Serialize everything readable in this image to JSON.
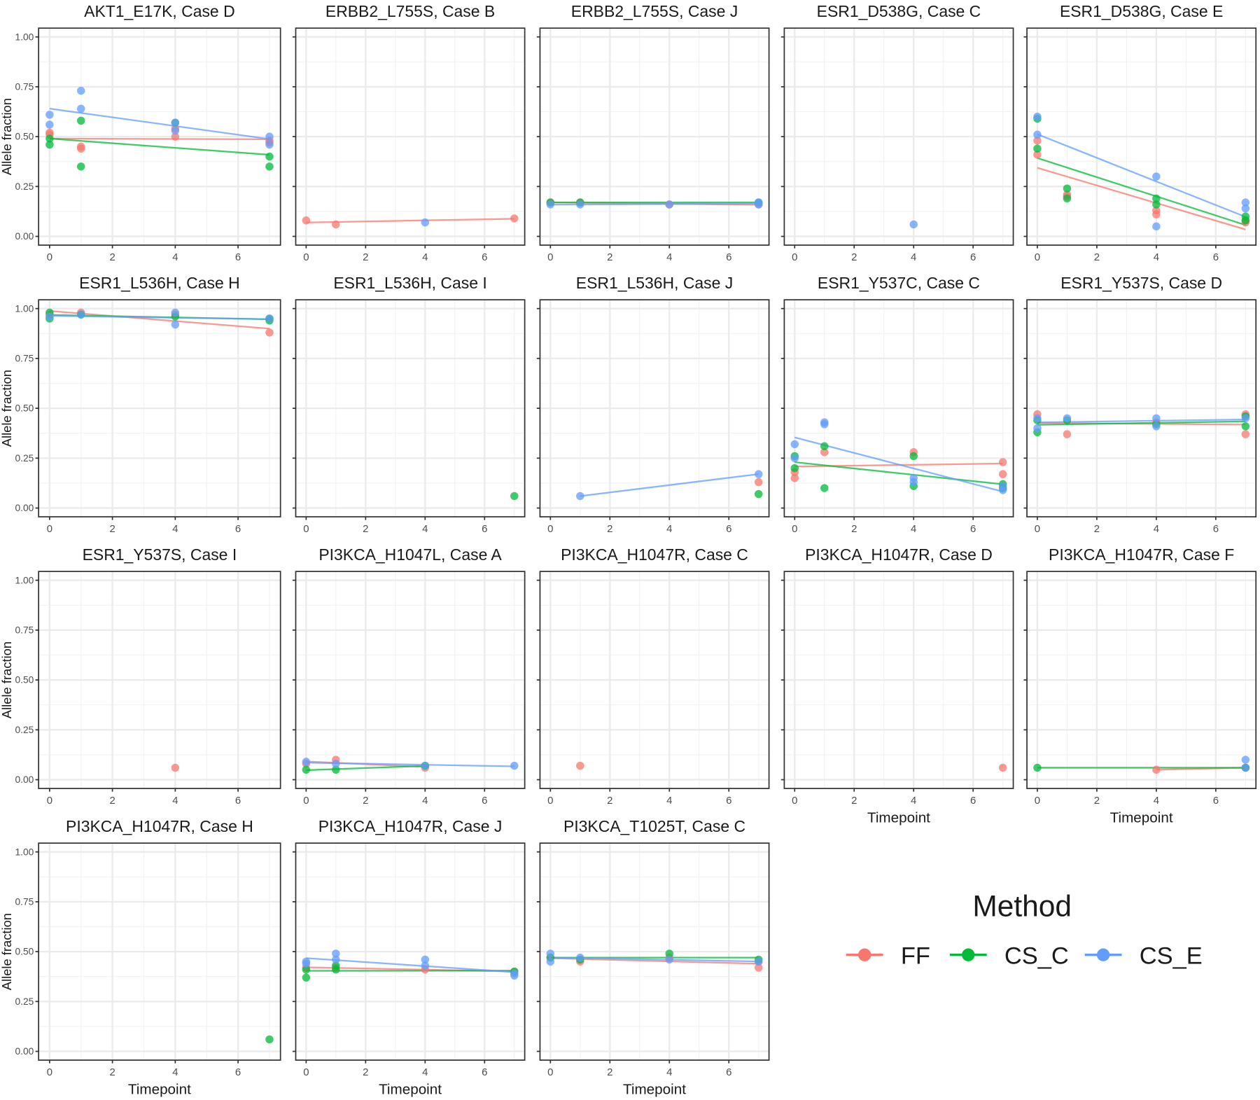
{
  "chart_data": {
    "type": "scatter",
    "layout": "facet grid, 5 columns",
    "ylabel": "Allele fraction",
    "xlabel": "Timepoint",
    "xlim": [
      -0.35,
      7.35
    ],
    "ylim": [
      -0.044,
      1.044
    ],
    "x_ticks": [
      0,
      2,
      4,
      6
    ],
    "y_ticks": [
      "0.00",
      "0.25",
      "0.50",
      "0.75",
      "1.00"
    ],
    "grid": true,
    "fit_lines": "linear regression per method",
    "legend": {
      "title": "Method",
      "placement": "bottom-right",
      "entries": [
        {
          "name": "FF",
          "color": "#F8766D"
        },
        {
          "name": "CS_C",
          "color": "#00BA38"
        },
        {
          "name": "CS_E",
          "color": "#619CFF"
        }
      ]
    },
    "panels": [
      {
        "title": "AKT1_E17K, Case D",
        "series": {
          "FF": [
            [
              0,
              0.52
            ],
            [
              0,
              0.51
            ],
            [
              1,
              0.45
            ],
            [
              1,
              0.44
            ],
            [
              4,
              0.5
            ],
            [
              4,
              0.54
            ],
            [
              7,
              0.48
            ],
            [
              7,
              0.47
            ]
          ],
          "CS_C": [
            [
              0,
              0.49
            ],
            [
              0,
              0.46
            ],
            [
              1,
              0.58
            ],
            [
              1,
              0.35
            ],
            [
              4,
              0.57
            ],
            [
              7,
              0.4
            ],
            [
              7,
              0.35
            ]
          ],
          "CS_E": [
            [
              0,
              0.61
            ],
            [
              0,
              0.56
            ],
            [
              1,
              0.73
            ],
            [
              1,
              0.64
            ],
            [
              4,
              0.57
            ],
            [
              4,
              0.53
            ],
            [
              7,
              0.5
            ],
            [
              7,
              0.46
            ]
          ]
        }
      },
      {
        "title": "ERBB2_L755S, Case B",
        "series": {
          "FF": [
            [
              0,
              0.08
            ],
            [
              1,
              0.06
            ],
            [
              7,
              0.09
            ]
          ],
          "CS_C": [],
          "CS_E": [
            [
              4,
              0.07
            ]
          ]
        }
      },
      {
        "title": "ERBB2_L755S, Case J",
        "series": {
          "FF": [
            [
              0,
              0.17
            ],
            [
              1,
              0.17
            ],
            [
              4,
              0.16
            ],
            [
              7,
              0.16
            ]
          ],
          "CS_C": [
            [
              0,
              0.17
            ],
            [
              1,
              0.17
            ],
            [
              7,
              0.17
            ]
          ],
          "CS_E": [
            [
              0,
              0.16
            ],
            [
              1,
              0.16
            ],
            [
              4,
              0.16
            ],
            [
              7,
              0.17
            ],
            [
              7,
              0.16
            ]
          ]
        }
      },
      {
        "title": "ESR1_D538G, Case C",
        "series": {
          "FF": [],
          "CS_C": [],
          "CS_E": [
            [
              4,
              0.06
            ]
          ]
        }
      },
      {
        "title": "ESR1_D538G, Case E",
        "series": {
          "FF": [
            [
              0,
              0.48
            ],
            [
              0,
              0.41
            ],
            [
              1,
              0.21
            ],
            [
              1,
              0.2
            ],
            [
              4,
              0.13
            ],
            [
              4,
              0.11
            ],
            [
              7,
              0.07
            ],
            [
              7,
              0.08
            ]
          ],
          "CS_C": [
            [
              0,
              0.59
            ],
            [
              0,
              0.44
            ],
            [
              1,
              0.24
            ],
            [
              1,
              0.19
            ],
            [
              4,
              0.19
            ],
            [
              4,
              0.16
            ],
            [
              7,
              0.1
            ],
            [
              7,
              0.08
            ]
          ],
          "CS_E": [
            [
              0,
              0.6
            ],
            [
              0,
              0.51
            ],
            [
              4,
              0.3
            ],
            [
              4,
              0.05
            ],
            [
              7,
              0.17
            ],
            [
              7,
              0.14
            ]
          ]
        }
      },
      {
        "title": "ESR1_L536H, Case H",
        "series": {
          "FF": [
            [
              0,
              0.97
            ],
            [
              1,
              0.98
            ],
            [
              4,
              0.97
            ],
            [
              7,
              0.88
            ]
          ],
          "CS_C": [
            [
              0,
              0.98
            ],
            [
              0,
              0.95
            ],
            [
              1,
              0.97
            ],
            [
              4,
              0.96
            ],
            [
              7,
              0.95
            ],
            [
              7,
              0.94
            ]
          ],
          "CS_E": [
            [
              0,
              0.96
            ],
            [
              1,
              0.97
            ],
            [
              4,
              0.98
            ],
            [
              4,
              0.92
            ],
            [
              7,
              0.95
            ]
          ]
        }
      },
      {
        "title": "ESR1_L536H, Case I",
        "series": {
          "FF": [],
          "CS_C": [
            [
              7,
              0.06
            ]
          ],
          "CS_E": []
        }
      },
      {
        "title": "ESR1_L536H, Case J",
        "series": {
          "FF": [
            [
              7,
              0.13
            ]
          ],
          "CS_C": [
            [
              7,
              0.07
            ]
          ],
          "CS_E": [
            [
              1,
              0.06
            ],
            [
              7,
              0.17
            ]
          ]
        }
      },
      {
        "title": "ESR1_Y537C, Case C",
        "series": {
          "FF": [
            [
              0,
              0.18
            ],
            [
              0,
              0.15
            ],
            [
              1,
              0.28
            ],
            [
              4,
              0.28
            ],
            [
              7,
              0.23
            ],
            [
              7,
              0.17
            ]
          ],
          "CS_C": [
            [
              0,
              0.26
            ],
            [
              0,
              0.2
            ],
            [
              1,
              0.31
            ],
            [
              1,
              0.1
            ],
            [
              4,
              0.26
            ],
            [
              4,
              0.11
            ],
            [
              7,
              0.12
            ],
            [
              7,
              0.1
            ]
          ],
          "CS_E": [
            [
              0,
              0.32
            ],
            [
              0,
              0.25
            ],
            [
              1,
              0.43
            ],
            [
              1,
              0.42
            ],
            [
              4,
              0.15
            ],
            [
              4,
              0.13
            ],
            [
              7,
              0.11
            ],
            [
              7,
              0.09
            ]
          ]
        }
      },
      {
        "title": "ESR1_Y537S, Case D",
        "series": {
          "FF": [
            [
              0,
              0.47
            ],
            [
              1,
              0.37
            ],
            [
              4,
              0.43
            ],
            [
              7,
              0.47
            ],
            [
              7,
              0.37
            ]
          ],
          "CS_C": [
            [
              0,
              0.44
            ],
            [
              0,
              0.38
            ],
            [
              1,
              0.44
            ],
            [
              4,
              0.42
            ],
            [
              7,
              0.46
            ],
            [
              7,
              0.41
            ]
          ],
          "CS_E": [
            [
              0,
              0.45
            ],
            [
              0,
              0.4
            ],
            [
              1,
              0.45
            ],
            [
              4,
              0.45
            ],
            [
              4,
              0.41
            ],
            [
              7,
              0.45
            ]
          ]
        }
      },
      {
        "title": "ESR1_Y537S, Case I",
        "series": {
          "FF": [
            [
              4,
              0.06
            ]
          ],
          "CS_C": [],
          "CS_E": []
        }
      },
      {
        "title": "PI3KCA_H1047L, Case A",
        "series": {
          "FF": [
            [
              0,
              0.08
            ],
            [
              1,
              0.1
            ],
            [
              4,
              0.06
            ]
          ],
          "CS_C": [
            [
              0,
              0.05
            ],
            [
              1,
              0.05
            ],
            [
              4,
              0.07
            ]
          ],
          "CS_E": [
            [
              0,
              0.09
            ],
            [
              1,
              0.08
            ],
            [
              4,
              0.07
            ],
            [
              7,
              0.07
            ]
          ]
        }
      },
      {
        "title": "PI3KCA_H1047R, Case C",
        "series": {
          "FF": [
            [
              1,
              0.07
            ]
          ],
          "CS_C": [],
          "CS_E": []
        }
      },
      {
        "title": "PI3KCA_H1047R, Case D",
        "series": {
          "FF": [
            [
              7,
              0.06
            ]
          ],
          "CS_C": [],
          "CS_E": []
        }
      },
      {
        "title": "PI3KCA_H1047R, Case F",
        "series": {
          "FF": [
            [
              4,
              0.05
            ],
            [
              7,
              0.06
            ]
          ],
          "CS_C": [
            [
              0,
              0.06
            ],
            [
              7,
              0.06
            ]
          ],
          "CS_E": [
            [
              7,
              0.1
            ],
            [
              7,
              0.06
            ]
          ]
        }
      },
      {
        "title": "PI3KCA_H1047R, Case H",
        "series": {
          "FF": [],
          "CS_C": [
            [
              7,
              0.06
            ]
          ],
          "CS_E": []
        }
      },
      {
        "title": "PI3KCA_H1047R, Case J",
        "series": {
          "FF": [
            [
              0,
              0.42
            ],
            [
              1,
              0.42
            ],
            [
              4,
              0.41
            ],
            [
              7,
              0.4
            ]
          ],
          "CS_C": [
            [
              0,
              0.41
            ],
            [
              0,
              0.37
            ],
            [
              1,
              0.41
            ],
            [
              1,
              0.43
            ],
            [
              7,
              0.4
            ]
          ],
          "CS_E": [
            [
              0,
              0.45
            ],
            [
              0,
              0.44
            ],
            [
              1,
              0.49
            ],
            [
              1,
              0.46
            ],
            [
              4,
              0.46
            ],
            [
              4,
              0.43
            ],
            [
              7,
              0.39
            ],
            [
              7,
              0.38
            ]
          ]
        }
      },
      {
        "title": "PI3KCA_T1025T, Case C",
        "series": {
          "FF": [
            [
              0,
              0.47
            ],
            [
              1,
              0.45
            ],
            [
              4,
              0.47
            ],
            [
              7,
              0.42
            ],
            [
              7,
              0.45
            ]
          ],
          "CS_C": [
            [
              0,
              0.47
            ],
            [
              1,
              0.46
            ],
            [
              4,
              0.49
            ],
            [
              7,
              0.46
            ]
          ],
          "CS_E": [
            [
              0,
              0.49
            ],
            [
              0,
              0.45
            ],
            [
              1,
              0.47
            ],
            [
              4,
              0.46
            ],
            [
              7,
              0.45
            ]
          ]
        }
      }
    ]
  }
}
